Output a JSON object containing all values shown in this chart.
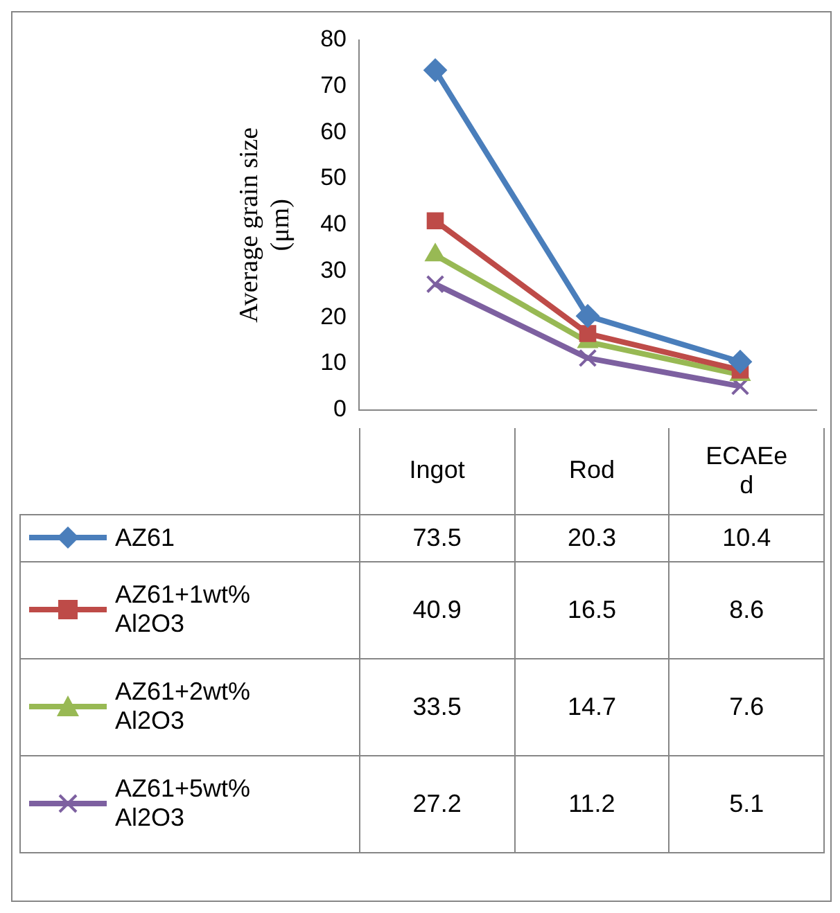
{
  "chart_data": {
    "type": "line",
    "ylabel": "Average grain size\n(μm)",
    "categories": [
      "Ingot",
      "Rod",
      "ECAEed"
    ],
    "series": [
      {
        "name": "AZ61",
        "color": "#4a7ebb",
        "marker": "diamond",
        "values": [
          73.5,
          20.3,
          10.4
        ]
      },
      {
        "name": "AZ61+1wt% Al2O3",
        "color": "#be4b48",
        "marker": "square",
        "values": [
          40.9,
          16.5,
          8.6
        ]
      },
      {
        "name": "AZ61+2wt% Al2O3",
        "color": "#98b954",
        "marker": "triangle",
        "values": [
          33.5,
          14.7,
          7.6
        ]
      },
      {
        "name": "AZ61+5wt% Al2O3",
        "color": "#7d60a0",
        "marker": "cross",
        "values": [
          27.2,
          11.2,
          5.1
        ]
      }
    ],
    "ylim": [
      0,
      80
    ],
    "yticks": [
      0,
      10,
      20,
      30,
      40,
      50,
      60,
      70,
      80
    ],
    "grid": false,
    "legend": "bottom",
    "data_labels": true,
    "tick_labels": "y"
  }
}
